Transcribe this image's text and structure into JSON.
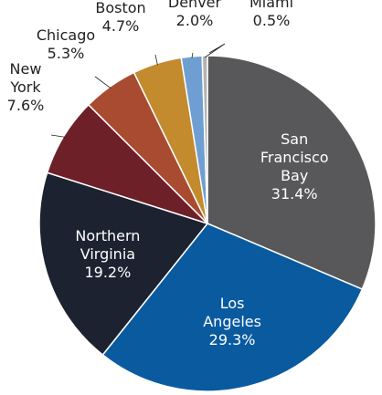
{
  "chart_data": {
    "type": "pie",
    "title": "",
    "slices": [
      {
        "lines": [
          "San",
          "Francisco",
          "Bay"
        ],
        "value_label": "31.4%",
        "value": 31.4,
        "color": "#58585a"
      },
      {
        "lines": [
          "Los",
          "Angeles"
        ],
        "value_label": "29.3%",
        "value": 29.3,
        "color": "#0a5aa0"
      },
      {
        "lines": [
          "Northern",
          "Virginia"
        ],
        "value_label": "19.2%",
        "value": 19.2,
        "color": "#1c2230"
      },
      {
        "lines": [
          "New",
          "York"
        ],
        "value_label": "7.6%",
        "value": 7.6,
        "color": "#6e2028"
      },
      {
        "lines": [
          "Chicago"
        ],
        "value_label": "5.3%",
        "value": 5.3,
        "color": "#a84b30"
      },
      {
        "lines": [
          "Boston"
        ],
        "value_label": "4.7%",
        "value": 4.7,
        "color": "#c38a2e"
      },
      {
        "lines": [
          "Denver"
        ],
        "value_label": "2.0%",
        "value": 2.0,
        "color": "#6f9fd2"
      },
      {
        "lines": [
          "Miami"
        ],
        "value_label": "0.5%",
        "value": 0.5,
        "color": "#b3b3b3"
      }
    ]
  }
}
